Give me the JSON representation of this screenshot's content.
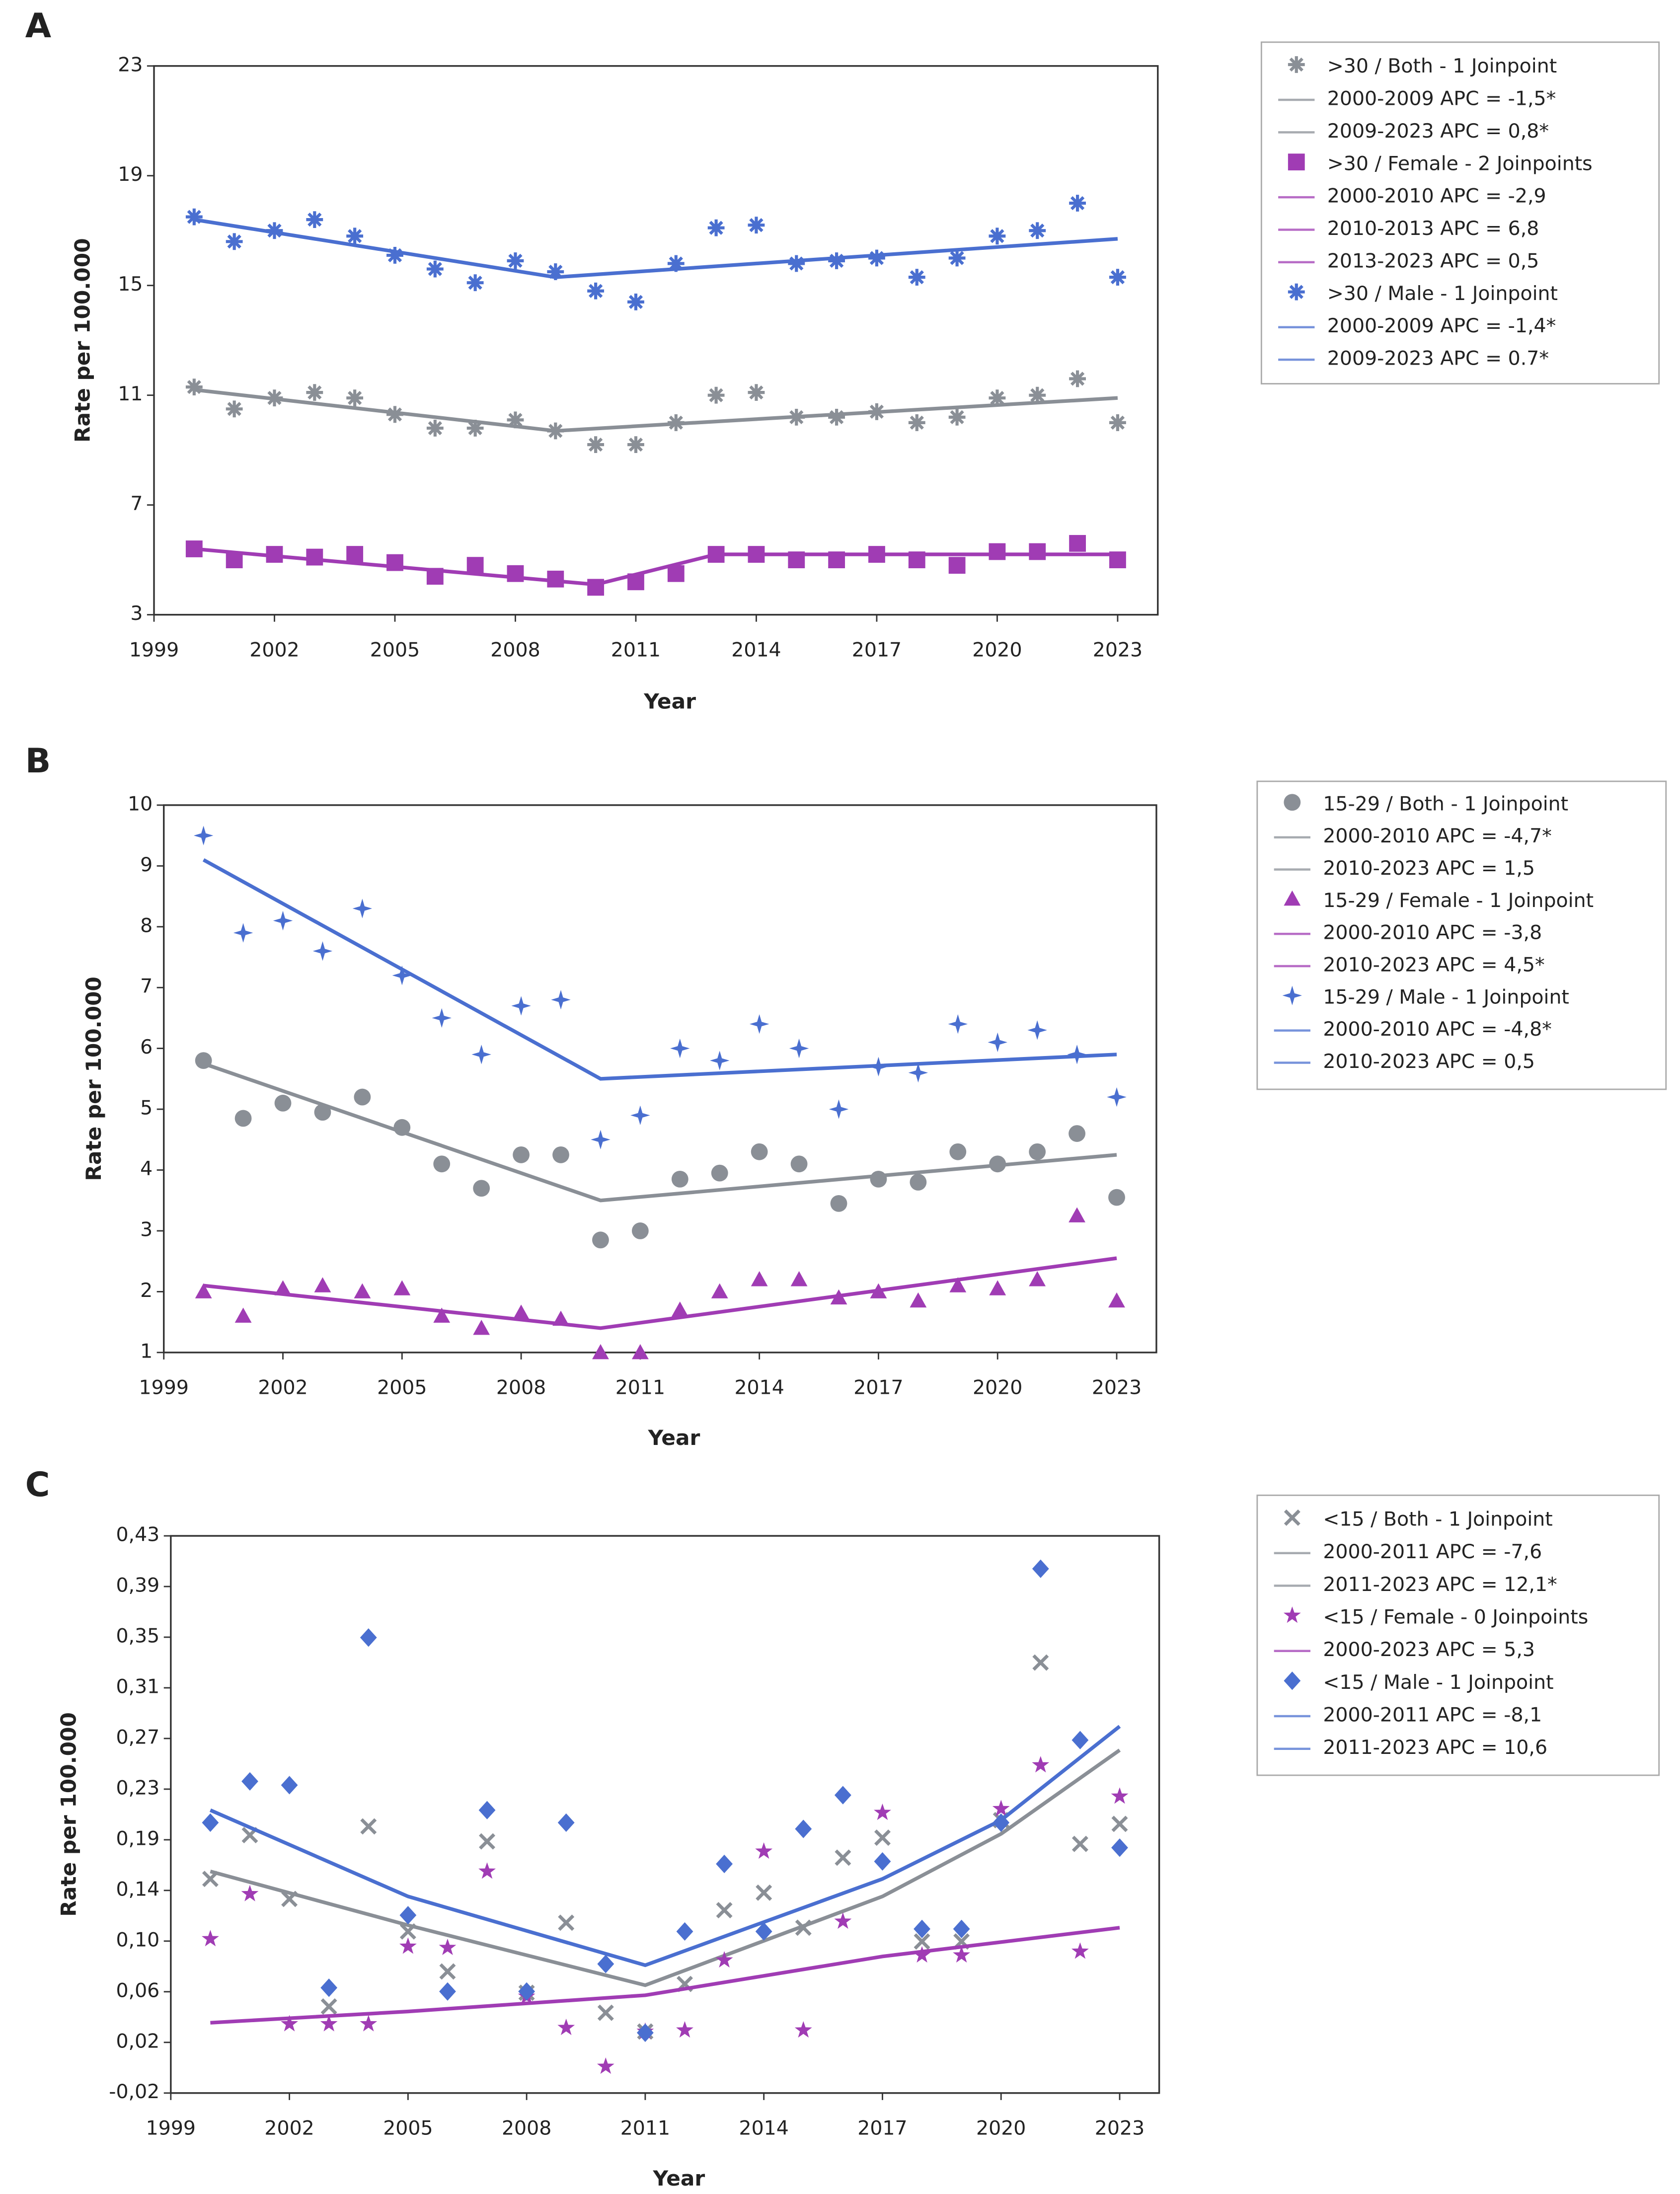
{
  "chart_data": [
    {
      "type": "joinpoint",
      "panel": "A",
      "ylabel": "Rate per 100.000",
      "xlabel": "Year",
      "xlim": [
        1999,
        2024
      ],
      "xticks": [
        1999,
        2002,
        2005,
        2008,
        2011,
        2014,
        2017,
        2020,
        2023
      ],
      "ylim": [
        3,
        23
      ],
      "yticks": [
        3,
        7,
        11,
        15,
        19,
        23
      ],
      "x": [
        2000,
        2001,
        2002,
        2003,
        2004,
        2005,
        2006,
        2007,
        2008,
        2009,
        2010,
        2011,
        2012,
        2013,
        2014,
        2015,
        2016,
        2017,
        2018,
        2019,
        2020,
        2021,
        2022,
        2023
      ],
      "series": [
        {
          "name": ">30 / Both - 1 Joinpoint",
          "color": "#8a8f96",
          "marker": "asterisk",
          "values": [
            11.3,
            10.5,
            10.9,
            11.1,
            10.9,
            10.3,
            9.8,
            9.8,
            10.1,
            9.7,
            9.2,
            9.2,
            10.0,
            11.0,
            11.1,
            10.2,
            10.2,
            10.4,
            10.0,
            10.2,
            10.9,
            11.0,
            11.6,
            10.0
          ],
          "fit_x": [
            2000,
            2009,
            2023
          ],
          "fit": [
            11.2,
            9.7,
            10.9
          ],
          "segments": [
            "2000-2009 APC  = -1,5*",
            "2009-2023 APC  =  0,8*"
          ]
        },
        {
          "name": ">30 / Female - 2 Joinpoints",
          "color": "#a03cb4",
          "marker": "square",
          "values": [
            5.4,
            5.0,
            5.2,
            5.1,
            5.2,
            4.9,
            4.4,
            4.8,
            4.5,
            4.3,
            4.0,
            4.2,
            4.5,
            5.2,
            5.2,
            5.0,
            5.0,
            5.2,
            5.0,
            4.8,
            5.3,
            5.3,
            5.6,
            5.0
          ],
          "fit_x": [
            2000,
            2010,
            2013,
            2023
          ],
          "fit": [
            5.4,
            4.1,
            5.2,
            5.2
          ],
          "segments": [
            "2000-2010 APC  = -2,9",
            "2010-2013 APC  =  6,8",
            "2013-2023 APC  =  0,5"
          ]
        },
        {
          "name": ">30 / Male - 1 Joinpoint",
          "color": "#4a6fd0",
          "marker": "asterisk",
          "values": [
            17.5,
            16.6,
            17.0,
            17.4,
            16.8,
            16.1,
            15.6,
            15.1,
            15.9,
            15.5,
            14.8,
            14.4,
            15.8,
            17.1,
            17.2,
            15.8,
            15.9,
            16.0,
            15.3,
            16.0,
            16.8,
            17.0,
            18.0,
            15.3
          ],
          "fit_x": [
            2000,
            2009,
            2023
          ],
          "fit": [
            17.4,
            15.3,
            16.7
          ],
          "segments": [
            "2000-2009 APC  = -1,4*",
            "2009-2023 APC  =  0.7*"
          ]
        }
      ]
    },
    {
      "type": "joinpoint",
      "panel": "B",
      "ylabel": "Rate per 100.000",
      "xlabel": "Year",
      "xlim": [
        1999,
        2024
      ],
      "xticks": [
        1999,
        2002,
        2005,
        2008,
        2011,
        2014,
        2017,
        2020,
        2023
      ],
      "ylim": [
        1,
        10
      ],
      "yticks": [
        1,
        2,
        3,
        4,
        5,
        6,
        7,
        8,
        9,
        10
      ],
      "x": [
        2000,
        2001,
        2002,
        2003,
        2004,
        2005,
        2006,
        2007,
        2008,
        2009,
        2010,
        2011,
        2012,
        2013,
        2014,
        2015,
        2016,
        2017,
        2018,
        2019,
        2020,
        2021,
        2022,
        2023
      ],
      "series": [
        {
          "name": "15-29 / Both - 1 Joinpoint",
          "color": "#8a8f96",
          "marker": "circle",
          "values": [
            5.8,
            4.85,
            5.1,
            4.95,
            5.2,
            4.7,
            4.1,
            3.7,
            4.25,
            4.25,
            2.85,
            3.0,
            3.85,
            3.95,
            4.3,
            4.1,
            3.45,
            3.85,
            3.8,
            4.3,
            4.1,
            4.3,
            4.6,
            3.55
          ],
          "fit_x": [
            2000,
            2010,
            2023
          ],
          "fit": [
            5.75,
            3.5,
            4.25
          ],
          "segments": [
            "2000-2010 APC  = -4,7*",
            "2010-2023 APC  =  1,5"
          ]
        },
        {
          "name": "15-29 / Female - 1 Joinpoint",
          "color": "#a03cb4",
          "marker": "triangle",
          "values": [
            2.0,
            1.6,
            2.05,
            2.1,
            2.0,
            2.05,
            1.6,
            1.4,
            1.65,
            1.55,
            1.0,
            1.0,
            1.7,
            2.0,
            2.2,
            2.2,
            1.9,
            2.0,
            1.85,
            2.1,
            2.05,
            2.2,
            3.25,
            1.85
          ],
          "fit_x": [
            2000,
            2010,
            2023
          ],
          "fit": [
            2.1,
            1.4,
            2.55
          ],
          "segments": [
            "2000-2010 APC  = -3,8",
            "2010-2023 APC  =  4,5*"
          ]
        },
        {
          "name": "15-29 / Male - 1 Joinpoint",
          "color": "#4a6fd0",
          "marker": "sparkle",
          "values": [
            9.5,
            7.9,
            8.1,
            7.6,
            8.3,
            7.2,
            6.5,
            5.9,
            6.7,
            6.8,
            4.5,
            4.9,
            6.0,
            5.8,
            6.4,
            6.0,
            5.0,
            5.7,
            5.6,
            6.4,
            6.1,
            6.3,
            5.9,
            5.2
          ],
          "fit_x": [
            2000,
            2010,
            2023
          ],
          "fit": [
            9.1,
            5.5,
            5.9
          ],
          "segments": [
            "2000-2010 APC  = -4,8*",
            "2010-2023 APC  =  0,5"
          ]
        }
      ]
    },
    {
      "type": "joinpoint",
      "panel": "C",
      "ylabel": "Rate per 100.000",
      "xlabel": "Year",
      "xlim": [
        1999,
        2024
      ],
      "xticks": [
        1999,
        2002,
        2005,
        2008,
        2011,
        2014,
        2017,
        2020,
        2023
      ],
      "ylim": [
        -0.0172,
        0.4283
      ],
      "yticks": [
        {
          "value": -0.0172,
          "label": "-0,02"
        },
        {
          "value": 0.0233,
          "label": "0,02"
        },
        {
          "value": 0.0638,
          "label": "0,06"
        },
        {
          "value": 0.1043,
          "label": "0,10"
        },
        {
          "value": 0.1448,
          "label": "0,14"
        },
        {
          "value": 0.1853,
          "label": "0,19"
        },
        {
          "value": 0.2258,
          "label": "0,23"
        },
        {
          "value": 0.2663,
          "label": "0,27"
        },
        {
          "value": 0.3068,
          "label": "0,31"
        },
        {
          "value": 0.3473,
          "label": "0,35"
        },
        {
          "value": 0.3878,
          "label": "0,39"
        },
        {
          "value": 0.4283,
          "label": "0,43"
        }
      ],
      "x": [
        2000,
        2001,
        2002,
        2003,
        2004,
        2005,
        2006,
        2007,
        2008,
        2009,
        2010,
        2011,
        2012,
        2013,
        2014,
        2015,
        2016,
        2017,
        2018,
        2019,
        2020,
        2021,
        2022,
        2023
      ],
      "series": [
        {
          "name": "<15 / Both - 1 Joinpoint",
          "color": "#8a8f96",
          "marker": "cross",
          "values": [
            0.154,
            0.189,
            0.138,
            0.052,
            0.196,
            0.112,
            0.08,
            0.184,
            0.063,
            0.119,
            0.047,
            0.032,
            0.07,
            0.129,
            0.143,
            0.115,
            0.171,
            0.187,
            0.104,
            0.104,
            0.201,
            0.327,
            0.182,
            0.198
          ],
          "fit_x": [
            2000,
            2005,
            2011,
            2017,
            2020,
            2023
          ],
          "fit": [
            0.16,
            0.117,
            0.069,
            0.14,
            0.19,
            0.257
          ],
          "segments": [
            "2000-2011 APC  = -7,6",
            "2011-2023 APC  = 12,1*"
          ]
        },
        {
          "name": "<15 / Female - 0 Joinpoints",
          "color": "#a03cb4",
          "marker": "star",
          "values": [
            0.106,
            0.142,
            0.038,
            0.038,
            0.038,
            0.1,
            0.099,
            0.16,
            0.06,
            0.035,
            0.004,
            0.032,
            0.033,
            0.089,
            0.176,
            0.033,
            0.12,
            0.207,
            0.093,
            0.093,
            0.21,
            0.245,
            0.096,
            0.22
          ],
          "fit_x": [
            2000,
            2005,
            2011,
            2017,
            2023
          ],
          "fit": [
            0.039,
            0.048,
            0.061,
            0.092,
            0.115
          ],
          "segments": [
            "2000-2023 APC  = 5,3"
          ]
        },
        {
          "name": "<15 / Male - 1 Joinpoint",
          "color": "#4a6fd0",
          "marker": "diamond",
          "values": [
            0.199,
            0.232,
            0.229,
            0.067,
            0.347,
            0.125,
            0.064,
            0.209,
            0.064,
            0.199,
            0.086,
            0.031,
            0.112,
            0.166,
            0.112,
            0.194,
            0.221,
            0.168,
            0.114,
            0.114,
            0.199,
            0.402,
            0.265,
            0.179
          ],
          "fit_x": [
            2000,
            2005,
            2011,
            2017,
            2020,
            2023
          ],
          "fit": [
            0.209,
            0.14,
            0.085,
            0.154,
            0.201,
            0.276
          ],
          "segments": [
            "2000-2011 APC  = -8,1",
            "2011-2023 APC  = 10,6"
          ]
        }
      ]
    }
  ]
}
